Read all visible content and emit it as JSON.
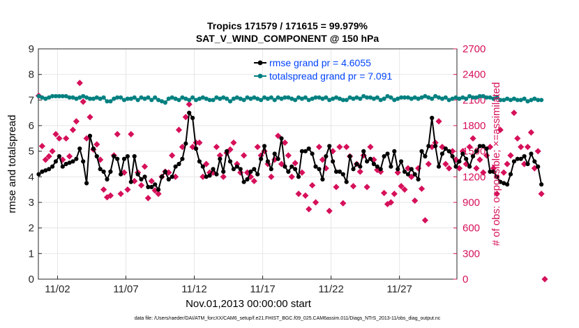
{
  "chart_data": {
    "type": "line",
    "title": "Tropics 171579 / 171615 = 99.979%",
    "subtitle": "SAT_V_WIND_COMPONENT @ 150 hPa",
    "xlabel": "Nov.01,2013 00:00:00 start",
    "ylabel_left": "rmse and totalspread",
    "ylabel_right": "# of obs: o=possible; ×=assimilated",
    "footnote": "data file: /Users/raeder/DAI/ATM_forcXX/CAM6_setup/f.e21.FHIST_BGC.f09_025.CAM6assim.011/Diags_NTrS_2013-11/obs_diag_output.nc",
    "xlim": [
      0.6,
      31.2
    ],
    "ylim_left": [
      0,
      9
    ],
    "ylim_right": [
      0,
      2700
    ],
    "x_ticks": [
      {
        "label": "11/02",
        "x": 2
      },
      {
        "label": "11/07",
        "x": 7
      },
      {
        "label": "11/12",
        "x": 12
      },
      {
        "label": "11/17",
        "x": 17
      },
      {
        "label": "11/22",
        "x": 22
      },
      {
        "label": "11/27",
        "x": 27
      }
    ],
    "y_ticks_left": [
      "0",
      "1",
      "2",
      "3",
      "4",
      "5",
      "6",
      "7",
      "8",
      "9"
    ],
    "y_ticks_right": [
      "0",
      "300",
      "600",
      "900",
      "1200",
      "1500",
      "1800",
      "2100",
      "2400",
      "2700"
    ],
    "colors": {
      "rmse": "#000000",
      "spread": "#008080",
      "obs": "#d6105a",
      "legend_text": "#0044ff",
      "right_axis": "#d6105a",
      "grid": "#e6e6e6"
    },
    "series": [
      {
        "name": "rmse grand pr = 4.6055",
        "axis": "left",
        "x0": 0.625,
        "dx": 0.25,
        "values": [
          4.1,
          4.2,
          4.25,
          4.3,
          4.4,
          4.6,
          4.8,
          4.4,
          4.5,
          4.55,
          4.6,
          4.7,
          5.1,
          4.6,
          3.75,
          5.6,
          5.1,
          4.8,
          4.3,
          4.2,
          3.9,
          4.2,
          4.8,
          4.7,
          4.1,
          4.7,
          4.8,
          3.8,
          4.8,
          4.1,
          3.9,
          4.0,
          3.6,
          3.6,
          3.7,
          3.5,
          4.0,
          4.2,
          3.9,
          4.0,
          4.4,
          4.5,
          4.7,
          5.3,
          6.5,
          6.3,
          5.1,
          4.6,
          4.4,
          4.0,
          4.05,
          4.3,
          4.1,
          4.7,
          4.2,
          5.0,
          4.6,
          4.3,
          4.4,
          4.3,
          3.8,
          3.9,
          4.2,
          4.3,
          4.1,
          4.7,
          5.2,
          4.6,
          4.3,
          4.9,
          4.7,
          5.5,
          4.4,
          4.2,
          4.4,
          4.3,
          4.0,
          5.0,
          5.0,
          5.1,
          4.9,
          4.4,
          4.3,
          3.9,
          4.8,
          5.2,
          4.6,
          4.2,
          4.2,
          4.1,
          3.8,
          4.8,
          4.3,
          4.5,
          4.4,
          5.0,
          4.6,
          4.7,
          4.5,
          4.4,
          4.3,
          4.8,
          4.9,
          4.4,
          5.0,
          4.3,
          4.6,
          4.2,
          4.1,
          4.3,
          4.1,
          3.9,
          5.0,
          4.8,
          5.2,
          6.3,
          5.2,
          4.4,
          4.9,
          5.1,
          5.0,
          4.8,
          4.4,
          4.6,
          4.9,
          4.7,
          4.4,
          4.8,
          5.0,
          5.2,
          5.2,
          5.1,
          4.2,
          4.2,
          4.0,
          3.8,
          3.75,
          3.7,
          4.1,
          4.6,
          4.7,
          4.7,
          4.8,
          4.5,
          4.9,
          4.6,
          4.4,
          3.7
        ],
        "color": "#000000"
      },
      {
        "name": "totalspread grand pr = 7.091",
        "axis": "left",
        "x0": 0.625,
        "dx": 0.25,
        "values": [
          7.15,
          7.1,
          7.05,
          7.1,
          7.15,
          7.15,
          7.15,
          7.15,
          7.15,
          7.1,
          7.1,
          7.05,
          7.1,
          7.15,
          7.1,
          7.05,
          7.05,
          7.1,
          7.05,
          7.1,
          6.95,
          6.95,
          7.05,
          7.1,
          7.1,
          7.0,
          7.05,
          7.05,
          7.1,
          7.0,
          7.1,
          7.05,
          7.1,
          7.0,
          7.1,
          7.0,
          6.95,
          6.9,
          7.05,
          7.1,
          7.05,
          7.0,
          7.1,
          7.05,
          7.0,
          7.1,
          7.0,
          7.05,
          7.1,
          7.05,
          7.0,
          7.0,
          7.1,
          7.05,
          7.1,
          7.05,
          6.95,
          7.05,
          7.1,
          7.05,
          7.0,
          7.1,
          7.05,
          7.1,
          7.05,
          7.0,
          7.1,
          7.05,
          7.1,
          7.0,
          7.1,
          7.05,
          7.1,
          7.1,
          7.05,
          7.0,
          7.1,
          7.05,
          7.1,
          7.0,
          7.05,
          7.1,
          7.1,
          7.05,
          7.1,
          7.0,
          7.05,
          7.1,
          7.05,
          7.0,
          7.0,
          7.1,
          7.05,
          7.1,
          7.05,
          7.15,
          7.1,
          7.1,
          7.05,
          7.1,
          7.0,
          7.05,
          7.15,
          7.1,
          7.0,
          7.05,
          7.1,
          7.1,
          7.1,
          7.05,
          7.1,
          7.05,
          7.1,
          7.15,
          7.1,
          7.05,
          7.15,
          7.1,
          7.05,
          7.1,
          7.0,
          7.05,
          7.1,
          7.05,
          7.1,
          7.05,
          7.15,
          7.1,
          7.1,
          7.15,
          7.15,
          7.1,
          7.1,
          7.05,
          7.1,
          7.0,
          7.0,
          7.05,
          7.0,
          7.05,
          7.0,
          7.0,
          7.05,
          6.95,
          7.0,
          7.05,
          7.0,
          7.0
        ],
        "color": "#008080"
      },
      {
        "name": "obs assimilated",
        "axis": "right",
        "x0": 0.625,
        "dx": 0.25,
        "values": [
          2150,
          1560,
          1400,
          1440,
          1500,
          1700,
          1650,
          1400,
          1650,
          1440,
          1750,
          1850,
          2300,
          2080,
          1650,
          1900,
          1520,
          1580,
          1400,
          1050,
          960,
          980,
          1450,
          1700,
          1000,
          1250,
          1050,
          1700,
          1150,
          1250,
          1100,
          1320,
          950,
          1150,
          1040,
          1000,
          1200,
          1260,
          1250,
          1450,
          1200,
          1750,
          1550,
          1900,
          2050,
          1550,
          1600,
          1600,
          1200,
          1350,
          1250,
          1250,
          1550,
          1450,
          1200,
          1480,
          1520,
          1600,
          1350,
          1250,
          1450,
          1250,
          1200,
          1150,
          1550,
          1450,
          1500,
          1350,
          1200,
          1400,
          1680,
          1350,
          1600,
          1450,
          1200,
          1360,
          1000,
          1250,
          980,
          820,
          1100,
          900,
          1550,
          1400,
          1300,
          800,
          1500,
          1080,
          1550,
          890,
          1550,
          1440,
          1090,
          1350,
          1260,
          1450,
          1080,
          1550,
          1400,
          1280,
          1260,
          1010,
          880,
          900,
          1000,
          1250,
          1090,
          1050,
          1300,
          1200,
          920,
          1300,
          1060,
          690,
          1350,
          1550,
          1600,
          1850,
          1550,
          1350,
          1300,
          1500,
          1400,
          1300,
          1500,
          1350,
          1550,
          1650,
          1300,
          1400,
          1250,
          1450,
          1550,
          1300,
          1000,
          1750,
          1250,
          1350,
          1450,
          1950,
          1650,
          1550,
          1350,
          1550,
          1720,
          1300,
          1500,
          1000,
          0
        ],
        "color": "#d6105a"
      }
    ]
  }
}
